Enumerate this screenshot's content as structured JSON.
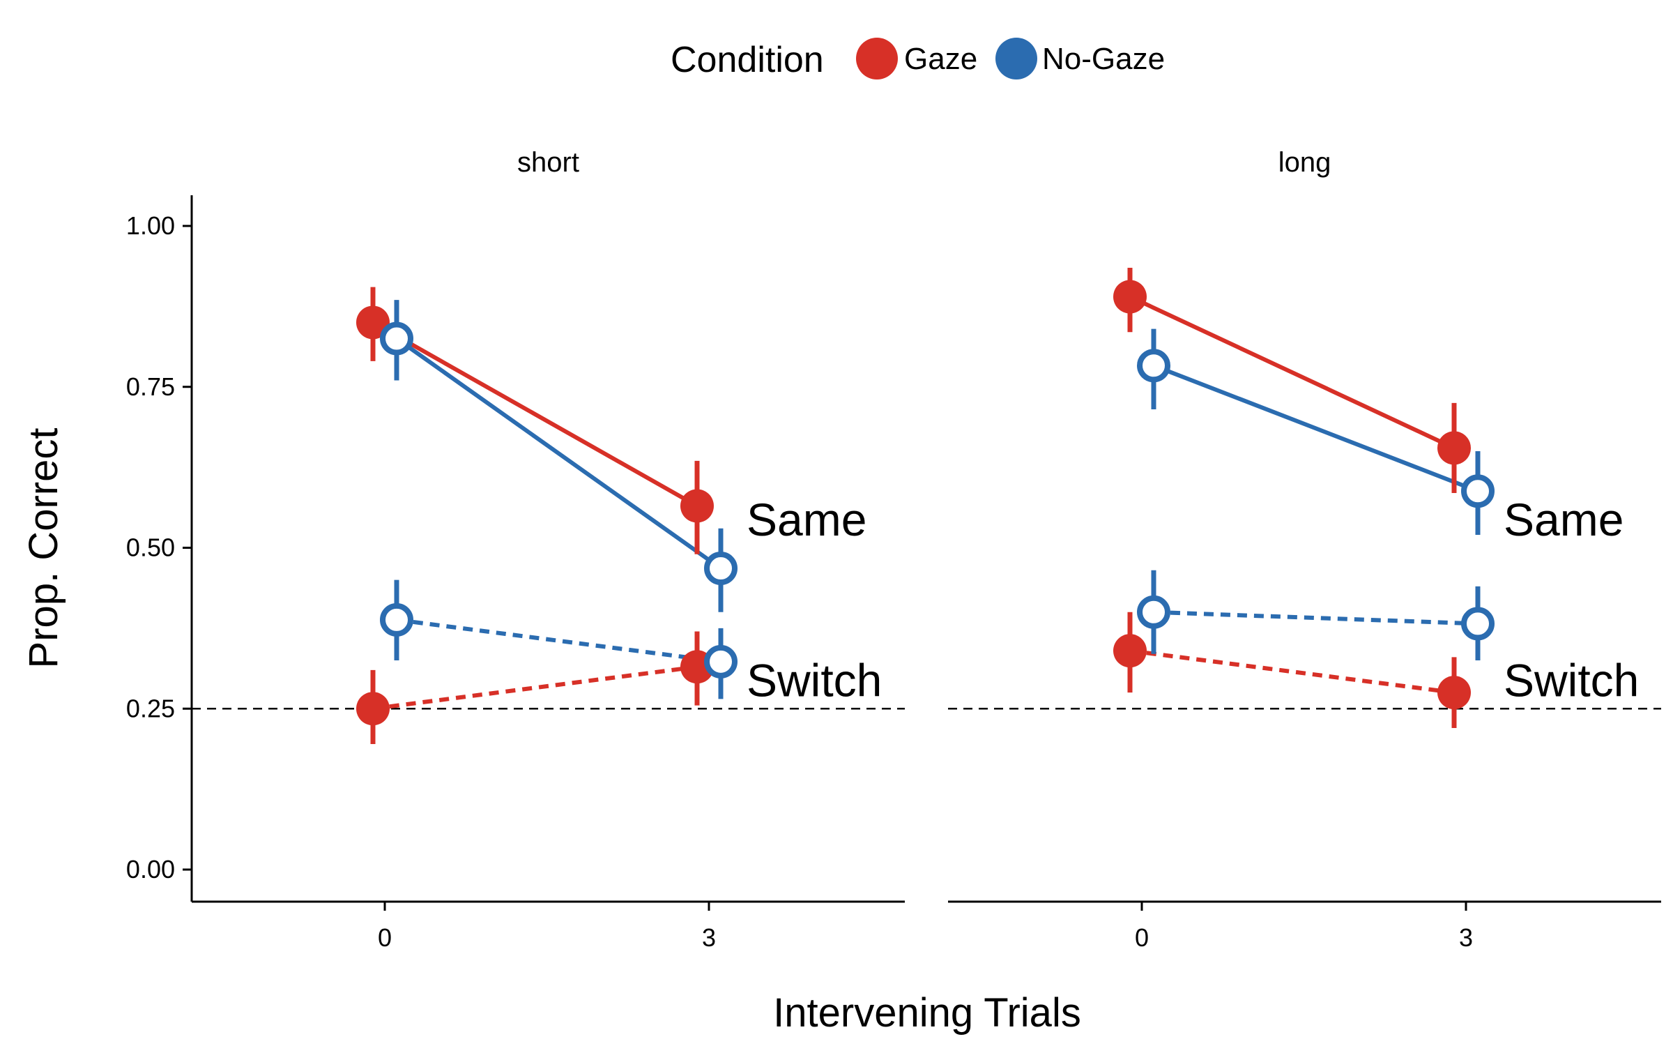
{
  "chart_data": {
    "type": "line",
    "xlabel": "Intervening Trials",
    "ylabel": "Prop. Correct",
    "legend": {
      "title": "Condition",
      "position": "top",
      "entries": [
        {
          "label": "Gaze",
          "color": "#d73027"
        },
        {
          "label": "No-Gaze",
          "color": "#2b6cb0"
        }
      ]
    },
    "x_ticks": [
      "0",
      "3"
    ],
    "y_ticks": [
      "0.00",
      "0.25",
      "0.50",
      "0.75",
      "1.00"
    ],
    "ylim": [
      -0.05,
      1.05
    ],
    "grid": false,
    "reference_line": {
      "y": 0.25,
      "style": "dashed"
    },
    "panels": [
      {
        "name": "short",
        "annotations": [
          {
            "text": "Same",
            "x": 3,
            "y": 0.545
          },
          {
            "text": "Switch",
            "x": 3,
            "y": 0.295
          }
        ],
        "series": [
          {
            "condition": "Gaze",
            "trial_type": "Same",
            "x": [
              0,
              3
            ],
            "y": [
              0.85,
              0.565
            ],
            "lower": [
              0.79,
              0.49
            ],
            "upper": [
              0.905,
              0.635
            ]
          },
          {
            "condition": "No-Gaze",
            "trial_type": "Same",
            "x": [
              0,
              3
            ],
            "y": [
              0.825,
              0.468
            ],
            "lower": [
              0.76,
              0.4
            ],
            "upper": [
              0.885,
              0.53
            ]
          },
          {
            "condition": "Gaze",
            "trial_type": "Switch",
            "x": [
              0,
              3
            ],
            "y": [
              0.25,
              0.315
            ],
            "lower": [
              0.195,
              0.255
            ],
            "upper": [
              0.31,
              0.37
            ]
          },
          {
            "condition": "No-Gaze",
            "trial_type": "Switch",
            "x": [
              0,
              3
            ],
            "y": [
              0.388,
              0.323
            ],
            "lower": [
              0.325,
              0.265
            ],
            "upper": [
              0.45,
              0.375
            ]
          }
        ]
      },
      {
        "name": "long",
        "annotations": [
          {
            "text": "Same",
            "x": 3,
            "y": 0.545
          },
          {
            "text": "Switch",
            "x": 3,
            "y": 0.295
          }
        ],
        "series": [
          {
            "condition": "Gaze",
            "trial_type": "Same",
            "x": [
              0,
              3
            ],
            "y": [
              0.89,
              0.655
            ],
            "lower": [
              0.835,
              0.585
            ],
            "upper": [
              0.935,
              0.725
            ]
          },
          {
            "condition": "No-Gaze",
            "trial_type": "Same",
            "x": [
              0,
              3
            ],
            "y": [
              0.783,
              0.588
            ],
            "lower": [
              0.715,
              0.52
            ],
            "upper": [
              0.84,
              0.65
            ]
          },
          {
            "condition": "Gaze",
            "trial_type": "Switch",
            "x": [
              0,
              3
            ],
            "y": [
              0.34,
              0.275
            ],
            "lower": [
              0.275,
              0.22
            ],
            "upper": [
              0.4,
              0.33
            ]
          },
          {
            "condition": "No-Gaze",
            "trial_type": "Switch",
            "x": [
              0,
              3
            ],
            "y": [
              0.4,
              0.382
            ],
            "lower": [
              0.335,
              0.325
            ],
            "upper": [
              0.465,
              0.44
            ]
          }
        ]
      }
    ]
  }
}
